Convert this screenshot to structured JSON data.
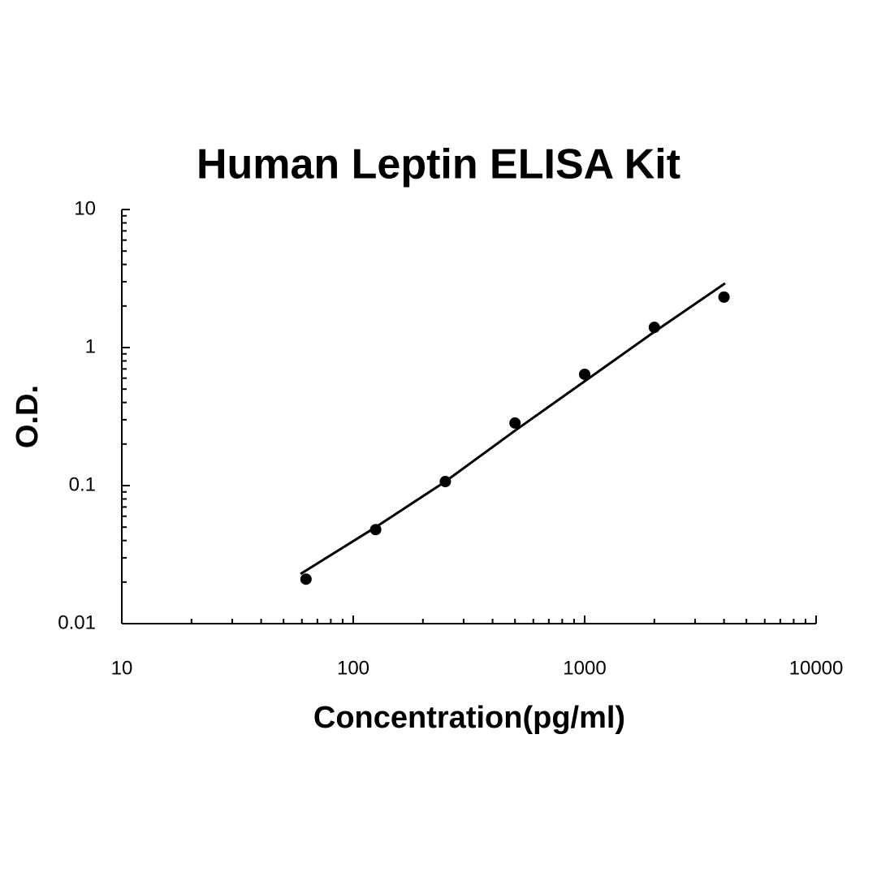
{
  "chart_data": {
    "type": "scatter",
    "title": "Human Leptin ELISA Kit",
    "xlabel": "Concentration(pg/ml)",
    "ylabel": "O.D.",
    "xlog": true,
    "ylog": true,
    "color": "#000000",
    "x": [
      62.5,
      125,
      250,
      500,
      1000,
      2000,
      4000
    ],
    "values": [
      0.021,
      0.048,
      0.107,
      0.284,
      0.64,
      1.4,
      2.32
    ],
    "fit_line": {
      "x": [
        59.2,
        125,
        250,
        500,
        1000,
        2000,
        4045
      ],
      "values": [
        0.0229,
        0.05,
        0.107,
        0.25,
        0.57,
        1.3,
        2.92
      ]
    },
    "xlim": [
      10,
      10000
    ],
    "ylim": [
      0.01,
      10
    ],
    "xticks": [
      10,
      100,
      1000,
      10000
    ],
    "yticks": [
      0.01,
      0.1,
      1,
      10
    ],
    "xminor_ticks": [
      20,
      30,
      40,
      50,
      60,
      70,
      80,
      90,
      200,
      300,
      400,
      500,
      600,
      700,
      800,
      900,
      2000,
      3000,
      4000,
      5000,
      6000,
      7000,
      8000,
      9000
    ],
    "yminor_ticks": [
      0.02,
      0.03,
      0.04,
      0.05,
      0.06,
      0.07,
      0.08,
      0.09,
      0.2,
      0.3,
      0.4,
      0.5,
      0.6,
      0.7,
      0.8,
      0.9,
      2,
      3,
      4,
      5,
      6,
      7,
      8,
      9
    ]
  }
}
